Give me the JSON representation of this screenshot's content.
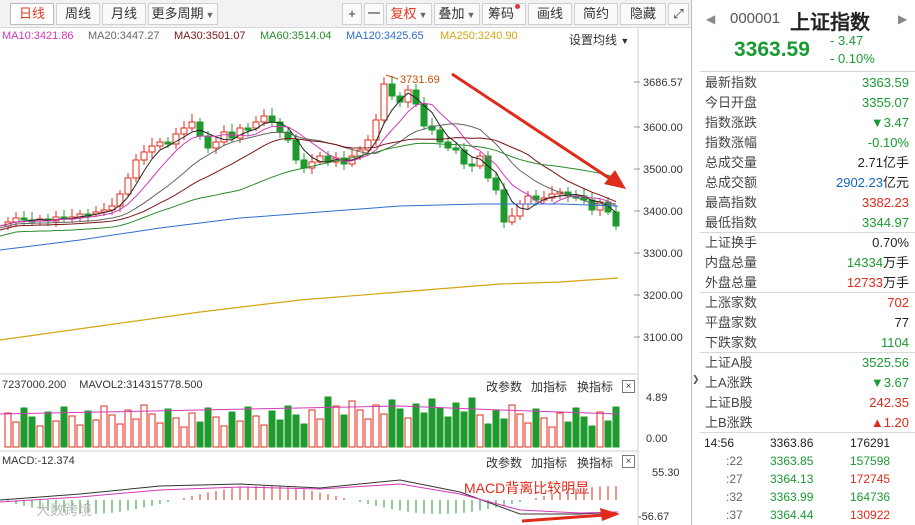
{
  "toolbar": {
    "tabs": [
      "日线",
      "周线",
      "月线",
      "更多周期"
    ],
    "plus": "+",
    "minus": "一",
    "adjust": "复权",
    "overlay": "叠加",
    "chips": "筹码",
    "draw": "画线",
    "simple": "简约",
    "hide": "隐藏",
    "expand": "⤢"
  },
  "ma_legend": [
    {
      "text": "MA10:3421.86",
      "color": "#d23ab8"
    },
    {
      "text": "MA20:3447.27",
      "color": "#666666"
    },
    {
      "text": "MA30:3501.07",
      "color": "#7a1414"
    },
    {
      "text": "MA60:3514.04",
      "color": "#2b8a2b"
    },
    {
      "text": "MA120:3425.65",
      "color": "#2e6fcf"
    },
    {
      "text": "MA250:3240.90",
      "color": "#d4a514"
    }
  ],
  "ma_setting": "设置均线",
  "price_axis": [
    "3686.57",
    "3600.00",
    "3500.00",
    "3400.00",
    "3300.00",
    "3200.00",
    "3100.00"
  ],
  "peak_label": "3731.69",
  "volume": {
    "legend": "7237000.200",
    "legend2": "MAVOL2:314315778.500",
    "axis_top": "4.89",
    "axis_bottom": "0.00",
    "btn_params": "改参数",
    "btn_add": "加指标",
    "btn_switch": "换指标",
    "close": "×"
  },
  "macd": {
    "legend": "MACD:-12.374",
    "axis_top": "55.30",
    "axis_bottom": "-56.67",
    "annotation": "MACD背离比较明显",
    "btn_params": "改参数",
    "btn_add": "加指标",
    "btn_switch": "换指标",
    "close": "×"
  },
  "watermark": "大数跨境",
  "quote": {
    "code": "000001",
    "name": "上证指数",
    "price": "3363.59",
    "change": "- 3.47",
    "change_pct": "- 0.10%",
    "nav_left": "◀",
    "nav_right": "▶"
  },
  "stats1": [
    {
      "label": "最新指数",
      "value": "3363.59",
      "unit": "",
      "color": "green"
    },
    {
      "label": "今日开盘",
      "value": "3355.07",
      "unit": "",
      "color": "green"
    },
    {
      "label": "指数涨跌",
      "value": "▼3.47",
      "unit": "",
      "color": "green"
    },
    {
      "label": "指数涨幅",
      "value": "-0.10%",
      "unit": "",
      "color": "green"
    },
    {
      "label": "总成交量",
      "value": "2.71",
      "unit": "亿手",
      "color": "dark"
    },
    {
      "label": "总成交额",
      "value": "2902.23",
      "unit": "亿元",
      "color": "blue"
    },
    {
      "label": "最高指数",
      "value": "3382.23",
      "unit": "",
      "color": "red"
    },
    {
      "label": "最低指数",
      "value": "3344.97",
      "unit": "",
      "color": "green"
    }
  ],
  "stats2": [
    {
      "label": "上证换手",
      "value": "0.70%",
      "unit": "",
      "color": "dark"
    },
    {
      "label": "内盘总量",
      "value": "14334",
      "unit": "万手",
      "color": "green"
    },
    {
      "label": "外盘总量",
      "value": "12733",
      "unit": "万手",
      "color": "red"
    }
  ],
  "stats3": [
    {
      "label": "上涨家数",
      "value": "702",
      "unit": "",
      "color": "red"
    },
    {
      "label": "平盘家数",
      "value": "77",
      "unit": "",
      "color": "dark"
    },
    {
      "label": "下跌家数",
      "value": "1104",
      "unit": "",
      "color": "green"
    }
  ],
  "stats4": [
    {
      "label": "上证A股",
      "value": "3525.56",
      "unit": "",
      "color": "green"
    },
    {
      "label": "上A涨跌",
      "value": "▼3.67",
      "unit": "",
      "color": "green"
    },
    {
      "label": "上证B股",
      "value": "242.35",
      "unit": "",
      "color": "red"
    },
    {
      "label": "上B涨跌",
      "value": "▲1.20",
      "unit": "",
      "color": "red"
    }
  ],
  "ticks": [
    {
      "time": "14:56",
      "price": "3363.86",
      "vol": "176291",
      "price_color": "dark",
      "vol_color": "dark"
    },
    {
      "time": ":22",
      "price": "3363.85",
      "vol": "157598",
      "price_color": "green",
      "vol_color": "green"
    },
    {
      "time": ":27",
      "price": "3364.13",
      "vol": "172745",
      "price_color": "green",
      "vol_color": "red"
    },
    {
      "time": ":32",
      "price": "3363.99",
      "vol": "164736",
      "price_color": "green",
      "vol_color": "green"
    },
    {
      "time": ":37",
      "price": "3364.44",
      "vol": "130922",
      "price_color": "green",
      "vol_color": "red"
    }
  ]
}
